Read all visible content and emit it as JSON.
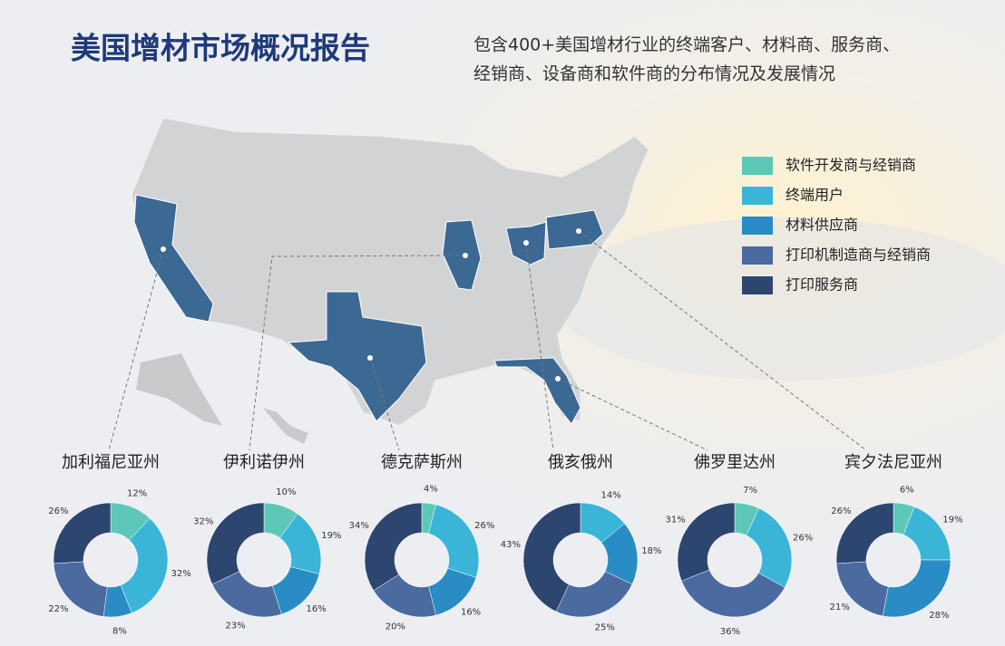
{
  "title": "美国增材市场概况报告",
  "subtitle": [
    "包含400+美国增材行业的终端客户、材料商、服务商、",
    "经销商、设备商和软件商的分布情况及发展情况"
  ],
  "colors": [
    "#5ec8b8",
    "#3ab5d8",
    "#2a8cc4",
    "#4a6aa0",
    "#2d4670"
  ],
  "chart_data": [
    {
      "type": "pie",
      "title": "加利福尼亚州",
      "categories": [
        "软件开发商与经销商",
        "终端用户",
        "材料供应商",
        "打印机制造商与经销商",
        "打印服务商"
      ],
      "values": [
        12,
        32,
        8,
        22,
        26
      ],
      "value_labels": [
        "12%",
        "32%",
        "8%",
        "22%",
        "26%"
      ]
    },
    {
      "type": "pie",
      "title": "伊利诺伊州",
      "categories": [
        "软件开发商与经销商",
        "终端用户",
        "材料供应商",
        "打印机制造商与经销商",
        "打印服务商"
      ],
      "values": [
        10,
        19,
        16,
        23,
        32
      ],
      "value_labels": [
        "10%",
        "19%",
        "16%",
        "23%",
        "32%"
      ]
    },
    {
      "type": "pie",
      "title": "德克萨斯州",
      "categories": [
        "软件开发商与经销商",
        "终端用户",
        "材料供应商",
        "打印机制造商与经销商",
        "打印服务商"
      ],
      "values": [
        4,
        26,
        16,
        20,
        34
      ],
      "value_labels": [
        "4%",
        "26%",
        "16%",
        "20%",
        "34%"
      ]
    },
    {
      "type": "pie",
      "title": "俄亥俄州",
      "categories": [
        "软件开发商与经销商",
        "终端用户",
        "材料供应商",
        "打印机制造商与经销商",
        "打印服务商"
      ],
      "values": [
        null,
        14,
        18,
        25,
        43
      ],
      "value_labels": [
        null,
        "14%",
        "18%",
        "25%",
        "43%"
      ]
    },
    {
      "type": "pie",
      "title": "佛罗里达州",
      "categories": [
        "软件开发商与经销商",
        "终端用户",
        "材料供应商",
        "打印机制造商与经销商",
        "打印服务商"
      ],
      "values": [
        7,
        26,
        null,
        36,
        31
      ],
      "value_labels": [
        "7%",
        "26%",
        null,
        "36%",
        "31%"
      ]
    },
    {
      "type": "pie",
      "title": "宾夕法尼亚州",
      "categories": [
        "软件开发商与经销商",
        "终端用户",
        "材料供应商",
        "打印机制造商与经销商",
        "打印服务商"
      ],
      "values": [
        6,
        19,
        28,
        21,
        26
      ],
      "value_labels": [
        "6%",
        "19%",
        "28%",
        "21%",
        "26%"
      ]
    }
  ]
}
